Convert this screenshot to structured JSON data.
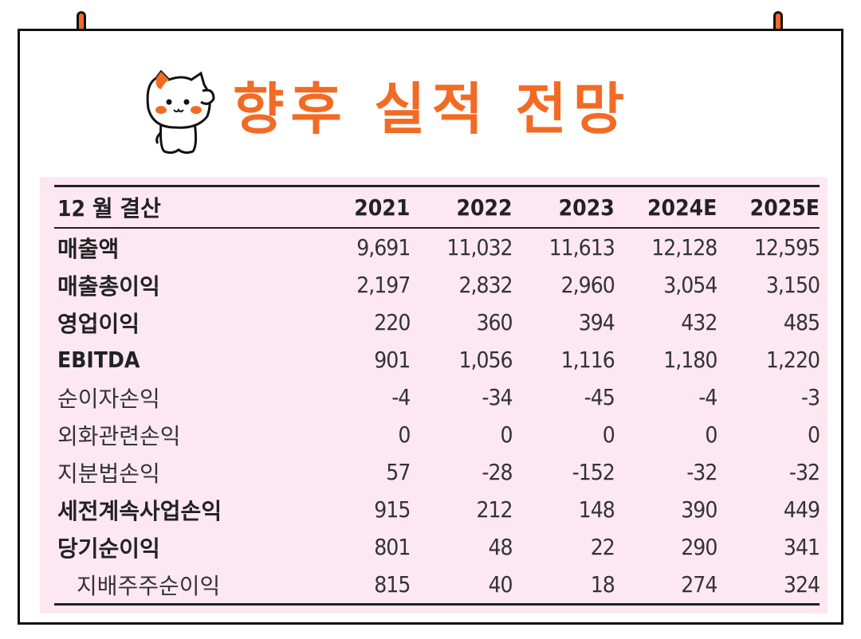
{
  "title": "향후 실적 전망",
  "accent_color": "#f26b25",
  "table": {
    "header": [
      "12 월 결산",
      "2021",
      "2022",
      "2023",
      "2024E",
      "2025E"
    ],
    "rows": [
      {
        "label": "매출액",
        "bold": true,
        "indent": false,
        "values": [
          "9,691",
          "11,032",
          "11,613",
          "12,128",
          "12,595"
        ]
      },
      {
        "label": "매출총이익",
        "bold": true,
        "indent": false,
        "values": [
          "2,197",
          "2,832",
          "2,960",
          "3,054",
          "3,150"
        ]
      },
      {
        "label": "영업이익",
        "bold": true,
        "indent": false,
        "values": [
          "220",
          "360",
          "394",
          "432",
          "485"
        ]
      },
      {
        "label": "EBITDA",
        "bold": true,
        "indent": false,
        "values": [
          "901",
          "1,056",
          "1,116",
          "1,180",
          "1,220"
        ]
      },
      {
        "label": "순이자손익",
        "bold": false,
        "indent": false,
        "values": [
          "-4",
          "-34",
          "-45",
          "-4",
          "-3"
        ]
      },
      {
        "label": "외화관련손익",
        "bold": false,
        "indent": false,
        "values": [
          "0",
          "0",
          "0",
          "0",
          "0"
        ]
      },
      {
        "label": "지분법손익",
        "bold": false,
        "indent": false,
        "values": [
          "57",
          "-28",
          "-152",
          "-32",
          "-32"
        ]
      },
      {
        "label": "세전계속사업손익",
        "bold": true,
        "indent": false,
        "values": [
          "915",
          "212",
          "148",
          "390",
          "449"
        ]
      },
      {
        "label": "당기순이익",
        "bold": true,
        "indent": false,
        "values": [
          "801",
          "48",
          "22",
          "290",
          "341"
        ]
      },
      {
        "label": "지배주주순이익",
        "bold": false,
        "indent": true,
        "values": [
          "815",
          "40",
          "18",
          "274",
          "324"
        ]
      }
    ]
  }
}
